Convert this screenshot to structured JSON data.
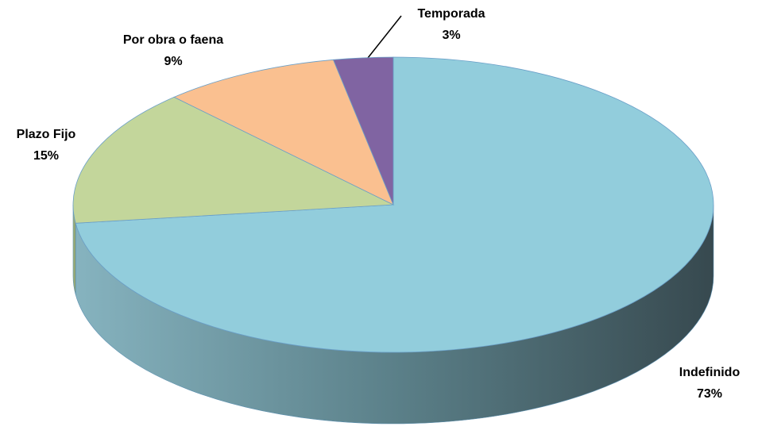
{
  "chart_data": {
    "type": "pie",
    "categories": [
      "Indefinido",
      "Plazo Fijo",
      "Por obra o faena",
      "Temporada"
    ],
    "values": [
      73,
      15,
      9,
      3
    ],
    "value_labels": [
      "73%",
      "15%",
      "9%",
      "3%"
    ],
    "colors": [
      "#92cddc",
      "#c3d69b",
      "#fac090",
      "#8064a2"
    ]
  }
}
